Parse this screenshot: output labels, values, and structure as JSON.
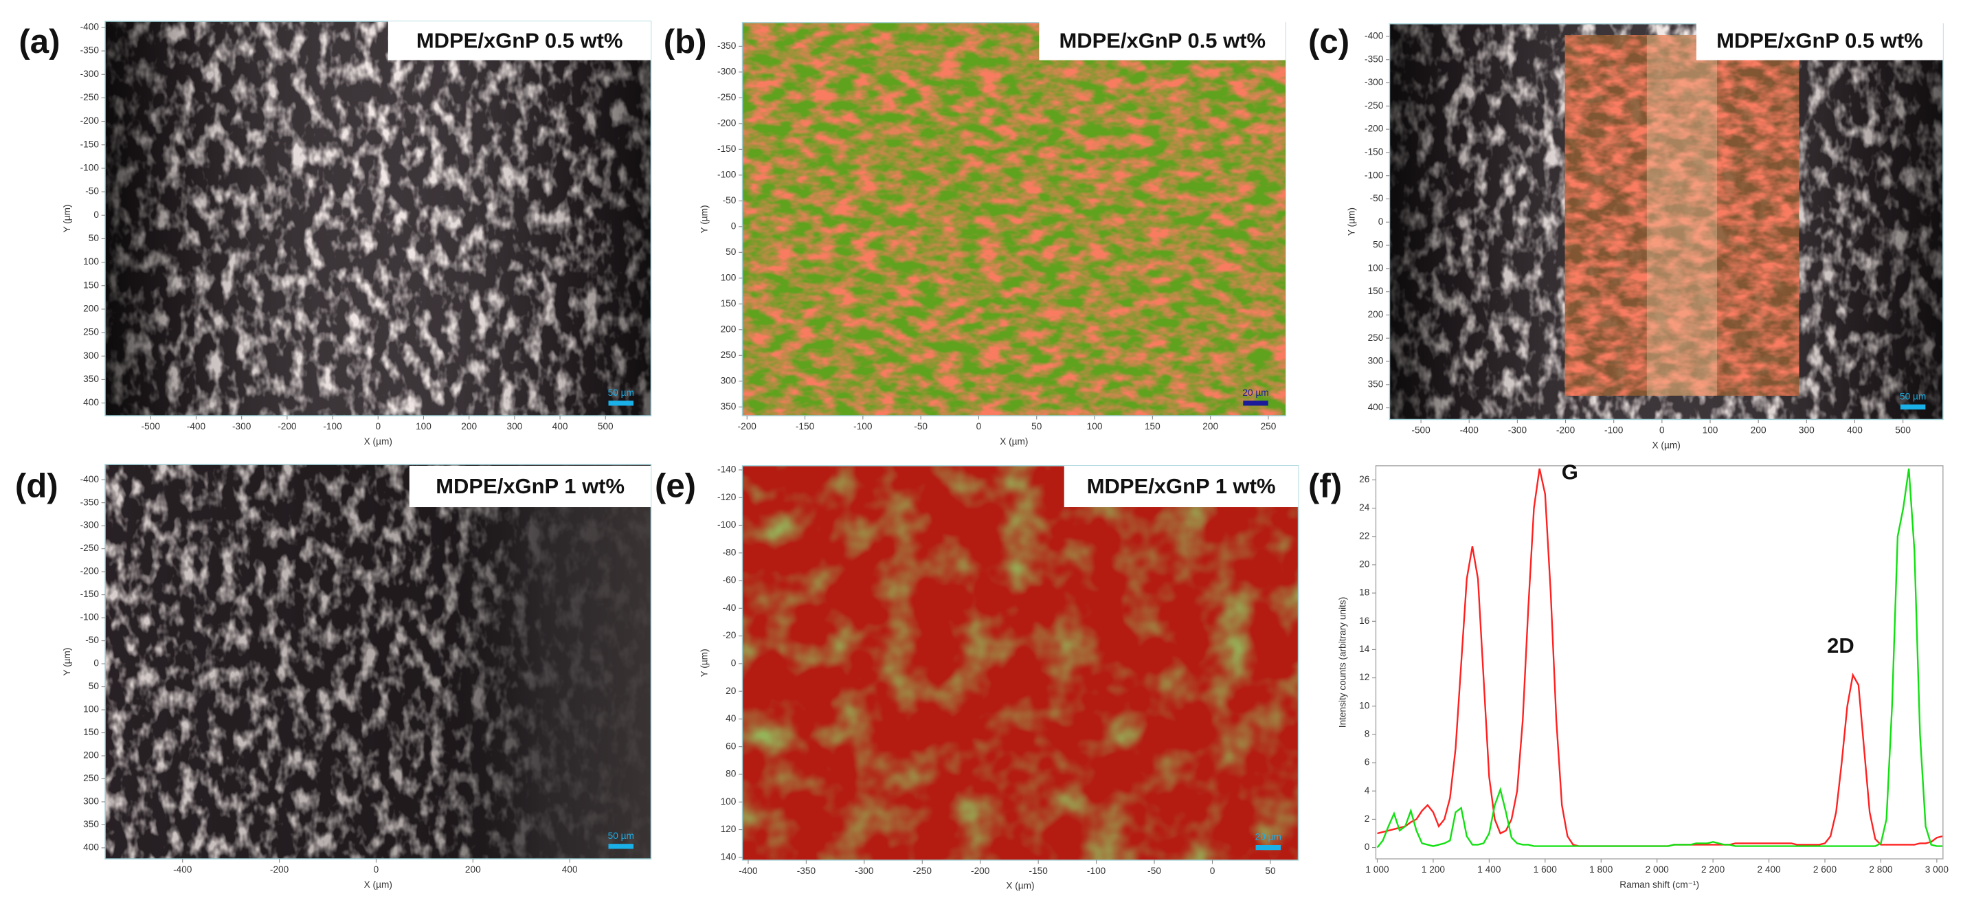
{
  "chart_data": [
    {
      "type": "image",
      "panel_label": "(a)",
      "title": "MDPE/xGnP 0.5 wt%",
      "xlabel": "X (µm)",
      "ylabel": "Y (µm)",
      "scalebar_label": "50 µm",
      "scalebar_color": "#1ab0e8",
      "xlim": [
        -600,
        600
      ],
      "xticks": [
        -500,
        -400,
        -300,
        -200,
        -100,
        0,
        100,
        200,
        300,
        400,
        500
      ],
      "ylim": [
        -413,
        427
      ],
      "y_reversed": true,
      "yticks": [
        -400,
        -350,
        -300,
        -250,
        -200,
        -150,
        -100,
        -50,
        0,
        50,
        100,
        150,
        200,
        250,
        300,
        350,
        400
      ]
    },
    {
      "type": "image",
      "panel_label": "(b)",
      "title": "MDPE/xGnP 0.5 wt%",
      "xlabel": "X (µm)",
      "ylabel": "Y (µm)",
      "scalebar_label": "20 µm",
      "scalebar_color": "#1a1a9a",
      "xlim": [
        -204,
        265
      ],
      "xticks": [
        -200,
        -150,
        -100,
        -50,
        0,
        50,
        100,
        150,
        200,
        250
      ],
      "ylim": [
        -396,
        367
      ],
      "y_reversed": true,
      "yticks": [
        -350,
        -300,
        -250,
        -200,
        -150,
        -100,
        -50,
        0,
        50,
        100,
        150,
        200,
        250,
        300,
        350
      ]
    },
    {
      "type": "image",
      "panel_label": "(c)",
      "title": "MDPE/xGnP 0.5 wt%",
      "xlabel": "X (µm)",
      "ylabel": "Y (µm)",
      "scalebar_label": "50 µm",
      "scalebar_color": "#1ab0e8",
      "xlim": [
        -565,
        583
      ],
      "xticks": [
        -500,
        -400,
        -300,
        -200,
        -100,
        0,
        100,
        200,
        300,
        400,
        500
      ],
      "ylim": [
        -427,
        425
      ],
      "y_reversed": true,
      "yticks": [
        -400,
        -350,
        -300,
        -250,
        -200,
        -150,
        -100,
        -50,
        0,
        50,
        100,
        150,
        200,
        250,
        300,
        350,
        400
      ]
    },
    {
      "type": "image",
      "panel_label": "(d)",
      "title": "MDPE/xGnP 1 wt%",
      "xlabel": "X (µm)",
      "ylabel": "Y (µm)",
      "scalebar_label": "50 µm",
      "scalebar_color": "#1ab0e8",
      "xlim": [
        -560,
        568
      ],
      "xticks": [
        -400,
        -200,
        0,
        200,
        400
      ],
      "ylim": [
        -433,
        424
      ],
      "y_reversed": true,
      "yticks": [
        -400,
        -350,
        -300,
        -250,
        -200,
        -150,
        -100,
        -50,
        0,
        50,
        100,
        150,
        200,
        250,
        300,
        350,
        400
      ]
    },
    {
      "type": "image",
      "panel_label": "(e)",
      "title": "MDPE/xGnP 1 wt%",
      "xlabel": "X (µm)",
      "ylabel": "Y (µm)",
      "scalebar_label": "20 µm",
      "scalebar_color": "#1ab0e8",
      "xlim": [
        -405,
        74
      ],
      "xticks": [
        -400,
        -350,
        -300,
        -250,
        -200,
        -150,
        -100,
        -50,
        0,
        50
      ],
      "ylim": [
        -143,
        142
      ],
      "y_reversed": true,
      "yticks": [
        -140,
        -120,
        -100,
        -80,
        -60,
        -40,
        -20,
        0,
        20,
        40,
        60,
        80,
        100,
        120,
        140
      ]
    },
    {
      "type": "line",
      "panel_label": "(f)",
      "xlabel": "Raman shift (cm⁻¹)",
      "ylabel": "Intensity counts (arbitrary units)",
      "annotations": [
        {
          "text": "G",
          "x": 1590,
          "y": 26.8
        },
        {
          "text": "2D",
          "x": 2710,
          "y": 12.4
        }
      ],
      "xlim": [
        995,
        3022
      ],
      "xticks": [
        {
          "value": 1000,
          "label": "1 000"
        },
        {
          "value": 1200,
          "label": "1 200"
        },
        {
          "value": 1400,
          "label": "1 400"
        },
        {
          "value": 1600,
          "label": "1 600"
        },
        {
          "value": 1800,
          "label": "1 800"
        },
        {
          "value": 2000,
          "label": "2 000"
        },
        {
          "value": 2200,
          "label": "2 200"
        },
        {
          "value": 2400,
          "label": "2 400"
        },
        {
          "value": 2600,
          "label": "2 600"
        },
        {
          "value": 2800,
          "label": "2 800"
        },
        {
          "value": 3000,
          "label": "3 000"
        }
      ],
      "ylim": [
        -0.8,
        27
      ],
      "yticks": [
        0,
        2,
        4,
        6,
        8,
        10,
        12,
        14,
        16,
        18,
        20,
        22,
        24,
        26
      ],
      "x": [
        1000,
        1020,
        1040,
        1060,
        1080,
        1100,
        1120,
        1140,
        1160,
        1180,
        1200,
        1220,
        1240,
        1260,
        1280,
        1300,
        1320,
        1340,
        1360,
        1380,
        1400,
        1420,
        1440,
        1460,
        1480,
        1500,
        1520,
        1540,
        1560,
        1580,
        1600,
        1620,
        1640,
        1660,
        1680,
        1700,
        1720,
        1740,
        1760,
        1780,
        1800,
        1820,
        1840,
        1860,
        1880,
        1900,
        1920,
        1940,
        1960,
        1980,
        2000,
        2020,
        2040,
        2060,
        2080,
        2100,
        2120,
        2140,
        2160,
        2180,
        2200,
        2220,
        2240,
        2260,
        2280,
        2300,
        2320,
        2340,
        2360,
        2380,
        2400,
        2420,
        2440,
        2460,
        2480,
        2500,
        2520,
        2540,
        2560,
        2580,
        2600,
        2620,
        2640,
        2660,
        2680,
        2700,
        2720,
        2740,
        2760,
        2780,
        2800,
        2820,
        2840,
        2860,
        2880,
        2900,
        2920,
        2940,
        2960,
        2980,
        3000,
        3020
      ],
      "series": [
        {
          "color": "#ff2020",
          "values": [
            1.0,
            1.1,
            1.2,
            1.3,
            1.4,
            1.5,
            1.8,
            2.0,
            2.6,
            3.0,
            2.5,
            1.5,
            2.0,
            3.5,
            7.0,
            13.0,
            19.0,
            21.3,
            19.0,
            12.0,
            5.0,
            2.0,
            1.0,
            1.2,
            2.0,
            4.0,
            9.0,
            17.0,
            24.0,
            26.8,
            25.0,
            18.0,
            9.0,
            3.0,
            0.8,
            0.2,
            0.1,
            0.1,
            0.1,
            0.1,
            0.1,
            0.1,
            0.1,
            0.1,
            0.1,
            0.1,
            0.1,
            0.1,
            0.1,
            0.1,
            0.1,
            0.1,
            0.1,
            0.2,
            0.2,
            0.2,
            0.2,
            0.2,
            0.2,
            0.2,
            0.2,
            0.2,
            0.2,
            0.2,
            0.3,
            0.3,
            0.3,
            0.3,
            0.3,
            0.3,
            0.3,
            0.3,
            0.3,
            0.3,
            0.3,
            0.2,
            0.2,
            0.2,
            0.2,
            0.2,
            0.3,
            0.8,
            2.5,
            6.0,
            10.0,
            12.2,
            11.5,
            7.0,
            2.5,
            0.6,
            0.2,
            0.2,
            0.2,
            0.2,
            0.2,
            0.2,
            0.2,
            0.3,
            0.3,
            0.4,
            0.7,
            0.8
          ]
        },
        {
          "color": "#10e010",
          "values": [
            0.0,
            0.5,
            1.5,
            2.4,
            1.2,
            1.5,
            2.6,
            1.2,
            0.3,
            0.2,
            0.1,
            0.2,
            0.3,
            0.5,
            2.5,
            2.8,
            0.8,
            0.2,
            0.2,
            0.3,
            1.0,
            3.0,
            4.1,
            2.5,
            0.7,
            0.3,
            0.2,
            0.2,
            0.1,
            0.1,
            0.1,
            0.1,
            0.1,
            0.1,
            0.1,
            0.1,
            0.1,
            0.1,
            0.1,
            0.1,
            0.1,
            0.1,
            0.1,
            0.1,
            0.1,
            0.1,
            0.1,
            0.1,
            0.1,
            0.1,
            0.1,
            0.1,
            0.1,
            0.2,
            0.2,
            0.2,
            0.2,
            0.3,
            0.3,
            0.3,
            0.4,
            0.3,
            0.2,
            0.2,
            0.1,
            0.1,
            0.1,
            0.1,
            0.1,
            0.1,
            0.1,
            0.1,
            0.1,
            0.1,
            0.1,
            0.1,
            0.1,
            0.1,
            0.1,
            0.1,
            0.1,
            0.1,
            0.1,
            0.1,
            0.1,
            0.1,
            0.1,
            0.1,
            0.1,
            0.1,
            0.3,
            2.0,
            10.0,
            22.0,
            24.0,
            26.8,
            21.0,
            8.0,
            1.5,
            0.2,
            0.1,
            0.1
          ]
        }
      ]
    }
  ]
}
